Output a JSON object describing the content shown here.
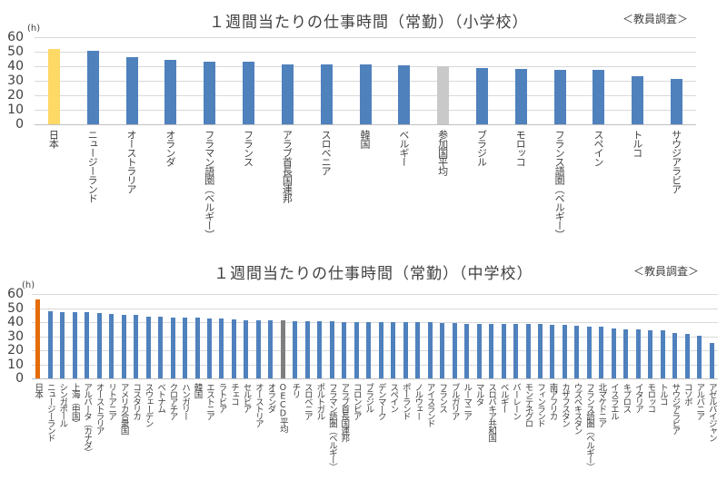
{
  "chart_data": [
    {
      "type": "bar",
      "title": "１週間当たりの仕事時間（常勤）（小学校）",
      "note": "＜教員調査＞",
      "ylabel": "(h)",
      "xlabel": "",
      "ylim": [
        0,
        60
      ],
      "yticks": [
        0,
        10,
        20,
        30,
        40,
        50,
        60
      ],
      "grid": true,
      "legend": "none",
      "categories": [
        "日本",
        "ニュージーランド",
        "オーストラリア",
        "オランダ",
        "フラマン語圏（ベルギー）",
        "フランス",
        "アラブ首長国連邦",
        "スロベニア",
        "韓国",
        "ベルギー",
        "参加国平均",
        "ブラジル",
        "モロッコ",
        "フランス語圏（ベルギー）",
        "スペイン",
        "トルコ",
        "サウジアラビア"
      ],
      "values": [
        52.0,
        50.7,
        46.5,
        44.5,
        43.0,
        43.0,
        41.4,
        41.2,
        41.1,
        40.8,
        40.3,
        38.6,
        38.1,
        37.8,
        37.8,
        33.1,
        31.3
      ],
      "colors": {
        "highlight": "#ffd966",
        "average": "#c9c9c9",
        "default": "#4f81bd"
      },
      "highlight_index": 0,
      "average_index": 10
    },
    {
      "type": "bar",
      "title": "１週間当たりの仕事時間（常勤）（中学校）",
      "note": "＜教員調査＞",
      "ylabel": "(h)",
      "xlabel": "",
      "ylim": [
        0,
        60
      ],
      "yticks": [
        0,
        10,
        20,
        30,
        40,
        50,
        60
      ],
      "grid": true,
      "legend": "none",
      "categories": [
        "日本",
        "ニュージーランド",
        "シンガポール",
        "上海（中国）",
        "アルバータ（カナダ）",
        "オーストラリア",
        "リトアニア",
        "アメリカ合衆国",
        "コスタリカ",
        "スウェーデン",
        "ベトナム",
        "クロアチア",
        "ハンガリー",
        "韓国",
        "エストニア",
        "ラトビア",
        "チェコ",
        "セルビア",
        "オーストリア",
        "オランダ",
        "OECD平均",
        "チリ",
        "スロベニア",
        "ポルトガル",
        "フラマン語圏（ベルギー）",
        "アラブ首長国連邦",
        "コロンビア",
        "ブラジル",
        "デンマーク",
        "スペイン",
        "ポーランド",
        "ノルウェー",
        "アイスランド",
        "フランス",
        "ブルガリア",
        "ルーマニア",
        "マルタ",
        "スロバキア共和国",
        "ベルギー",
        "バーレーン",
        "モンテネグロ",
        "フィンランド",
        "南アフリカ",
        "カザフスタン",
        "ウズベキスタン",
        "フランス語圏（ベルギー）",
        "北マケドニア",
        "イスラエル",
        "キプロス",
        "イタリア",
        "モロッコ",
        "トルコ",
        "サウジアラビア",
        "コソボ",
        "アルバニア",
        "アゼルバイジャン"
      ],
      "values": [
        56.0,
        47.6,
        47.4,
        47.1,
        47.0,
        46.6,
        46.0,
        45.3,
        45.2,
        44.0,
        44.0,
        43.3,
        43.0,
        43.0,
        42.4,
        42.3,
        41.9,
        41.5,
        41.0,
        41.0,
        41.0,
        40.8,
        40.7,
        40.5,
        40.4,
        40.3,
        40.3,
        40.3,
        40.2,
        40.1,
        40.0,
        39.9,
        39.8,
        39.3,
        39.2,
        38.9,
        38.9,
        38.9,
        38.9,
        38.6,
        38.6,
        38.4,
        37.9,
        37.8,
        37.2,
        37.0,
        36.9,
        35.3,
        34.8,
        34.6,
        34.3,
        33.9,
        32.4,
        31.6,
        30.5,
        25.2
      ],
      "colors": {
        "highlight": "#e46c0a",
        "average": "#7f7f7f",
        "default": "#4f81bd"
      },
      "highlight_index": 0,
      "average_index": 20
    }
  ]
}
